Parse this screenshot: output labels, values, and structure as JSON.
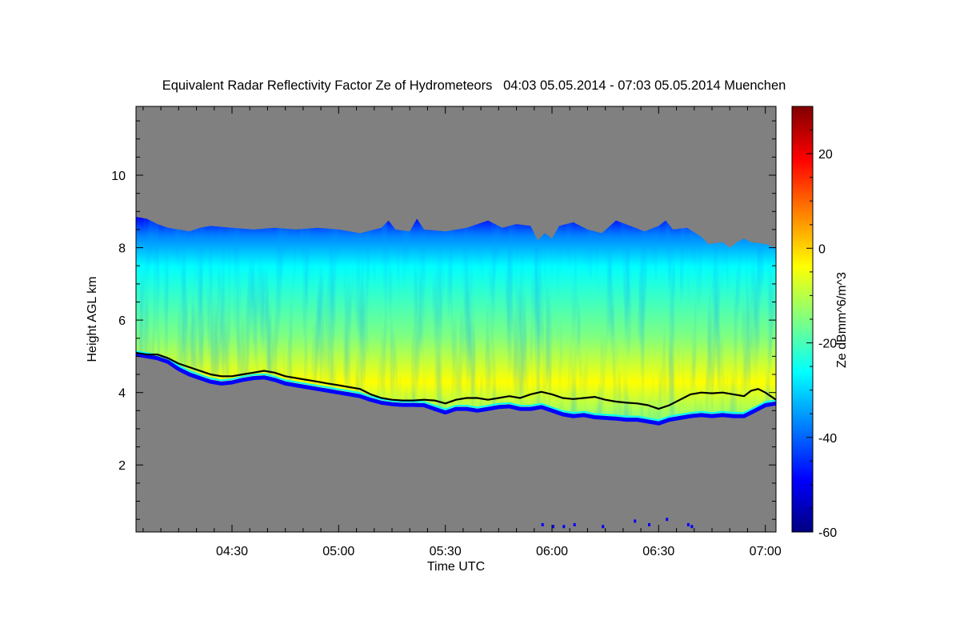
{
  "chart_data": {
    "type": "heatmap",
    "title": "Equivalent Radar Reflectivity Factor Ze of Hydrometeors   04:03 05.05.2014 - 07:03 05.05.2014 Muenchen",
    "xlabel": "Time UTC",
    "ylabel": "Height AGL km",
    "colorbar_label": "Ze dBmm^6/m^3",
    "x_range_minutes_utc": [
      243,
      423
    ],
    "y_range_km": [
      0.15,
      11.9
    ],
    "x_ticks": [
      {
        "minutes": 270,
        "label": "04:30"
      },
      {
        "minutes": 300,
        "label": "05:00"
      },
      {
        "minutes": 330,
        "label": "05:30"
      },
      {
        "minutes": 360,
        "label": "06:00"
      },
      {
        "minutes": 390,
        "label": "06:30"
      },
      {
        "minutes": 420,
        "label": "07:00"
      }
    ],
    "y_ticks": [
      {
        "km": 2,
        "label": "2"
      },
      {
        "km": 4,
        "label": "4"
      },
      {
        "km": 6,
        "label": "6"
      },
      {
        "km": 8,
        "label": "8"
      },
      {
        "km": 10,
        "label": "10"
      }
    ],
    "colorbar_range_dbz": [
      -60,
      30
    ],
    "colorbar_ticks": [
      {
        "dbz": -60,
        "label": "-60"
      },
      {
        "dbz": -40,
        "label": "-40"
      },
      {
        "dbz": -20,
        "label": "-20"
      },
      {
        "dbz": 0,
        "label": "0"
      },
      {
        "dbz": 20,
        "label": "20"
      }
    ],
    "no_data_color": "#808080",
    "colormap": [
      "#000080",
      "#0000ff",
      "#0080ff",
      "#00ffff",
      "#80ff80",
      "#ffff00",
      "#ff8000",
      "#ff0000",
      "#800000"
    ],
    "echo_top_km": [
      [
        243,
        8.85
      ],
      [
        246,
        8.8
      ],
      [
        249,
        8.65
      ],
      [
        252,
        8.55
      ],
      [
        255,
        8.5
      ],
      [
        258,
        8.45
      ],
      [
        261,
        8.55
      ],
      [
        264,
        8.6
      ],
      [
        270,
        8.55
      ],
      [
        276,
        8.5
      ],
      [
        282,
        8.55
      ],
      [
        288,
        8.5
      ],
      [
        294,
        8.55
      ],
      [
        300,
        8.5
      ],
      [
        306,
        8.4
      ],
      [
        312,
        8.55
      ],
      [
        314,
        8.75
      ],
      [
        316,
        8.5
      ],
      [
        320,
        8.45
      ],
      [
        322,
        8.8
      ],
      [
        324,
        8.5
      ],
      [
        330,
        8.45
      ],
      [
        336,
        8.55
      ],
      [
        342,
        8.75
      ],
      [
        346,
        8.55
      ],
      [
        350,
        8.65
      ],
      [
        354,
        8.6
      ],
      [
        356,
        8.2
      ],
      [
        358,
        8.4
      ],
      [
        360,
        8.25
      ],
      [
        362,
        8.6
      ],
      [
        366,
        8.7
      ],
      [
        370,
        8.5
      ],
      [
        374,
        8.4
      ],
      [
        378,
        8.75
      ],
      [
        382,
        8.6
      ],
      [
        386,
        8.45
      ],
      [
        390,
        8.6
      ],
      [
        392,
        8.75
      ],
      [
        394,
        8.5
      ],
      [
        398,
        8.55
      ],
      [
        402,
        8.3
      ],
      [
        404,
        8.1
      ],
      [
        408,
        8.15
      ],
      [
        410,
        8.0
      ],
      [
        412,
        8.15
      ],
      [
        414,
        8.25
      ],
      [
        416,
        8.15
      ],
      [
        420,
        8.1
      ],
      [
        423,
        8.0
      ]
    ],
    "melting_layer_km": [
      [
        243,
        5.1
      ],
      [
        246,
        5.05
      ],
      [
        249,
        5.05
      ],
      [
        252,
        4.95
      ],
      [
        255,
        4.8
      ],
      [
        258,
        4.7
      ],
      [
        261,
        4.6
      ],
      [
        264,
        4.5
      ],
      [
        267,
        4.45
      ],
      [
        270,
        4.45
      ],
      [
        273,
        4.5
      ],
      [
        276,
        4.55
      ],
      [
        279,
        4.6
      ],
      [
        282,
        4.55
      ],
      [
        285,
        4.45
      ],
      [
        288,
        4.4
      ],
      [
        291,
        4.35
      ],
      [
        294,
        4.3
      ],
      [
        297,
        4.25
      ],
      [
        300,
        4.2
      ],
      [
        303,
        4.15
      ],
      [
        306,
        4.1
      ],
      [
        309,
        3.95
      ],
      [
        312,
        3.85
      ],
      [
        315,
        3.8
      ],
      [
        318,
        3.78
      ],
      [
        321,
        3.78
      ],
      [
        324,
        3.8
      ],
      [
        327,
        3.78
      ],
      [
        330,
        3.7
      ],
      [
        333,
        3.8
      ],
      [
        336,
        3.85
      ],
      [
        339,
        3.85
      ],
      [
        342,
        3.8
      ],
      [
        345,
        3.85
      ],
      [
        348,
        3.9
      ],
      [
        351,
        3.85
      ],
      [
        354,
        3.95
      ],
      [
        357,
        4.02
      ],
      [
        360,
        3.95
      ],
      [
        363,
        3.85
      ],
      [
        366,
        3.82
      ],
      [
        369,
        3.85
      ],
      [
        372,
        3.88
      ],
      [
        375,
        3.8
      ],
      [
        378,
        3.75
      ],
      [
        381,
        3.72
      ],
      [
        384,
        3.7
      ],
      [
        387,
        3.65
      ],
      [
        390,
        3.55
      ],
      [
        393,
        3.65
      ],
      [
        396,
        3.8
      ],
      [
        399,
        3.95
      ],
      [
        402,
        4.0
      ],
      [
        405,
        3.98
      ],
      [
        408,
        4.0
      ],
      [
        411,
        3.95
      ],
      [
        414,
        3.9
      ],
      [
        416,
        4.05
      ],
      [
        418,
        4.1
      ],
      [
        420,
        4.0
      ],
      [
        423,
        3.8
      ]
    ],
    "cloud_base_km": [
      [
        243,
        5.05
      ],
      [
        246,
        5.0
      ],
      [
        249,
        4.95
      ],
      [
        252,
        4.85
      ],
      [
        255,
        4.65
      ],
      [
        258,
        4.5
      ],
      [
        261,
        4.4
      ],
      [
        264,
        4.3
      ],
      [
        267,
        4.25
      ],
      [
        270,
        4.28
      ],
      [
        273,
        4.35
      ],
      [
        276,
        4.4
      ],
      [
        279,
        4.42
      ],
      [
        282,
        4.35
      ],
      [
        285,
        4.25
      ],
      [
        288,
        4.2
      ],
      [
        291,
        4.15
      ],
      [
        294,
        4.1
      ],
      [
        297,
        4.05
      ],
      [
        300,
        4.0
      ],
      [
        303,
        3.95
      ],
      [
        306,
        3.9
      ],
      [
        309,
        3.8
      ],
      [
        312,
        3.72
      ],
      [
        315,
        3.68
      ],
      [
        318,
        3.66
      ],
      [
        321,
        3.66
      ],
      [
        324,
        3.65
      ],
      [
        327,
        3.55
      ],
      [
        330,
        3.45
      ],
      [
        333,
        3.55
      ],
      [
        336,
        3.55
      ],
      [
        339,
        3.5
      ],
      [
        342,
        3.55
      ],
      [
        345,
        3.6
      ],
      [
        348,
        3.62
      ],
      [
        351,
        3.55
      ],
      [
        354,
        3.55
      ],
      [
        357,
        3.6
      ],
      [
        360,
        3.5
      ],
      [
        363,
        3.4
      ],
      [
        366,
        3.35
      ],
      [
        369,
        3.38
      ],
      [
        372,
        3.32
      ],
      [
        375,
        3.3
      ],
      [
        378,
        3.28
      ],
      [
        381,
        3.25
      ],
      [
        384,
        3.25
      ],
      [
        387,
        3.2
      ],
      [
        390,
        3.15
      ],
      [
        393,
        3.25
      ],
      [
        396,
        3.3
      ],
      [
        399,
        3.35
      ],
      [
        402,
        3.38
      ],
      [
        405,
        3.35
      ],
      [
        408,
        3.38
      ],
      [
        411,
        3.35
      ],
      [
        414,
        3.35
      ],
      [
        416,
        3.45
      ],
      [
        418,
        3.55
      ],
      [
        420,
        3.65
      ],
      [
        423,
        3.7
      ]
    ],
    "near_ground_echoes": [
      {
        "minutes": 357,
        "km": 0.35
      },
      {
        "minutes": 360,
        "km": 0.3
      },
      {
        "minutes": 363,
        "km": 0.3
      },
      {
        "minutes": 366,
        "km": 0.35
      },
      {
        "minutes": 374,
        "km": 0.3
      },
      {
        "minutes": 383,
        "km": 0.45
      },
      {
        "minutes": 387,
        "km": 0.35
      },
      {
        "minutes": 392,
        "km": 0.5
      },
      {
        "minutes": 398,
        "km": 0.35
      },
      {
        "minutes": 399,
        "km": 0.3
      }
    ]
  }
}
